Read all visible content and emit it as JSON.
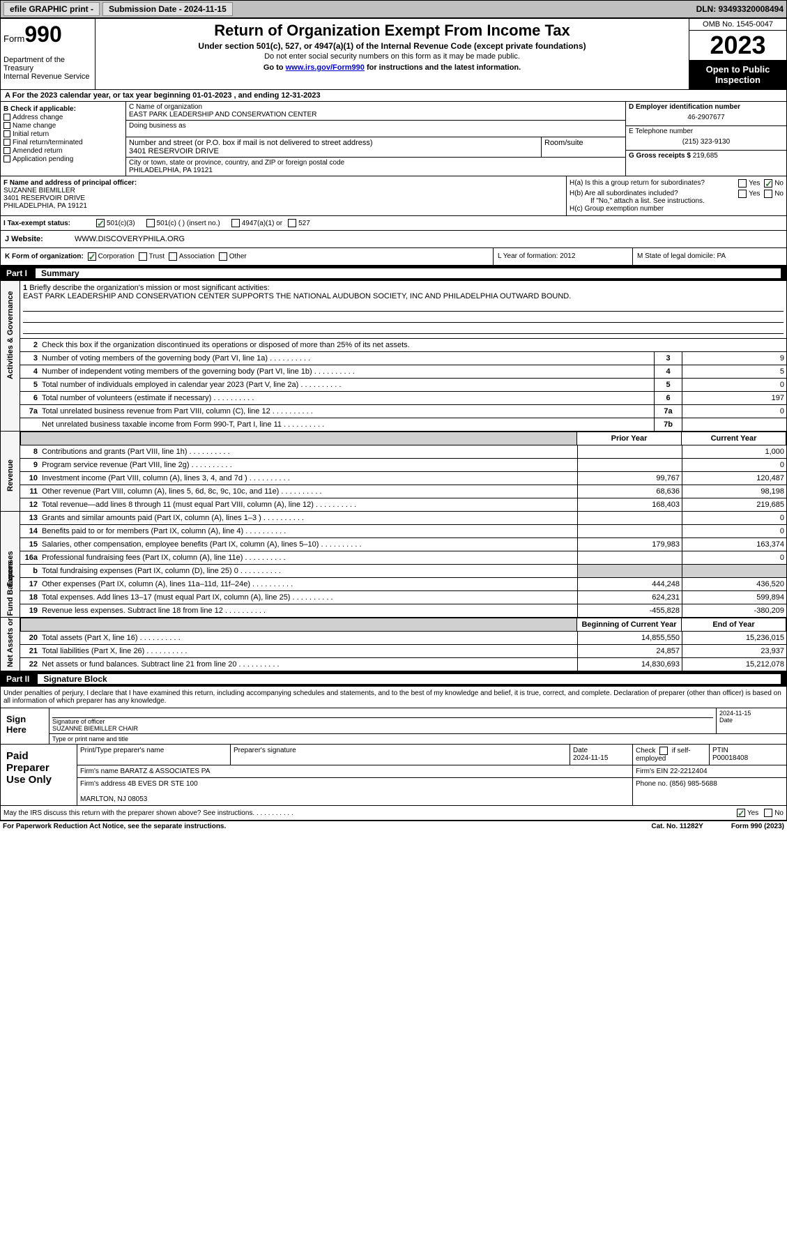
{
  "topbar": {
    "efile": "efile GRAPHIC print - ",
    "submission": "Submission Date - 2024-11-15",
    "dln": "DLN: 93493320008494"
  },
  "header": {
    "form": "Form",
    "num": "990",
    "title": "Return of Organization Exempt From Income Tax",
    "sub1": "Under section 501(c), 527, or 4947(a)(1) of the Internal Revenue Code (except private foundations)",
    "sub2": "Do not enter social security numbers on this form as it may be made public.",
    "sub3_pre": "Go to ",
    "sub3_link": "www.irs.gov/Form990",
    "sub3_post": " for instructions and the latest information.",
    "dept": "Department of the Treasury\nInternal Revenue Service",
    "omb": "OMB No. 1545-0047",
    "year": "2023",
    "inspect": "Open to Public Inspection"
  },
  "rowA": "For the 2023 calendar year, or tax year beginning 01-01-2023    , and ending 12-31-2023",
  "colB": {
    "title": "B Check if applicable:",
    "opts": [
      "Address change",
      "Name change",
      "Initial return",
      "Final return/terminated",
      "Amended return",
      "Application pending"
    ]
  },
  "colC": {
    "name_lbl": "C Name of organization",
    "name": "EAST PARK LEADERSHIP AND CONSERVATION CENTER",
    "dba_lbl": "Doing business as",
    "addr_lbl": "Number and street (or P.O. box if mail is not delivered to street address)",
    "addr": "3401 RESERVOIR DRIVE",
    "room_lbl": "Room/suite",
    "city_lbl": "City or town, state or province, country, and ZIP or foreign postal code",
    "city": "PHILADELPHIA, PA  19121"
  },
  "colD": {
    "ein_lbl": "D Employer identification number",
    "ein": "46-2907677",
    "phone_lbl": "E Telephone number",
    "phone": "(215) 323-9130",
    "gross_lbl": "G Gross receipts $",
    "gross": "219,685"
  },
  "sectF": {
    "lbl": "F Name and address of principal officer:",
    "name": "SUZANNE BIEMILLER",
    "addr": "3401 RESERVOIR DRIVE",
    "city": "PHILADELPHIA, PA  19121"
  },
  "sectH": {
    "ha": "H(a)  Is this a group return for subordinates?",
    "hb": "H(b)  Are all subordinates included?",
    "hb_note": "If \"No,\" attach a list. See instructions.",
    "hc": "H(c)  Group exemption number",
    "yes": "Yes",
    "no": "No"
  },
  "taxrow": {
    "lbl": "Tax-exempt status:",
    "o1": "501(c)(3)",
    "o2": "501(c) (  ) (insert no.)",
    "o3": "4947(a)(1) or",
    "o4": "527"
  },
  "jweb": {
    "lbl": "J   Website:",
    "val": "WWW.DISCOVERYPHILA.ORG"
  },
  "kform": {
    "k": "K Form of organization:",
    "opts": [
      "Corporation",
      "Trust",
      "Association",
      "Other"
    ],
    "l": "L Year of formation: 2012",
    "m": "M State of legal domicile: PA"
  },
  "part1": {
    "num": "Part I",
    "title": "Summary"
  },
  "mission": {
    "q": "Briefly describe the organization's mission or most significant activities:",
    "a": "EAST PARK LEADERSHIP AND CONSERVATION CENTER SUPPORTS THE NATIONAL AUDUBON SOCIETY, INC AND PHILADELPHIA OUTWARD BOUND."
  },
  "gov": {
    "l2": "Check this box          if the organization discontinued its operations or disposed of more than 25% of its net assets.",
    "rows": [
      {
        "n": "3",
        "t": "Number of voting members of the governing body (Part VI, line 1a)",
        "b": "3",
        "v": "9"
      },
      {
        "n": "4",
        "t": "Number of independent voting members of the governing body (Part VI, line 1b)",
        "b": "4",
        "v": "5"
      },
      {
        "n": "5",
        "t": "Total number of individuals employed in calendar year 2023 (Part V, line 2a)",
        "b": "5",
        "v": "0"
      },
      {
        "n": "6",
        "t": "Total number of volunteers (estimate if necessary)",
        "b": "6",
        "v": "197"
      },
      {
        "n": "7a",
        "t": "Total unrelated business revenue from Part VIII, column (C), line 12",
        "b": "7a",
        "v": "0"
      },
      {
        "n": "",
        "t": "Net unrelated business taxable income from Form 990-T, Part I, line 11",
        "b": "7b",
        "v": ""
      }
    ]
  },
  "revHdr": {
    "py": "Prior Year",
    "cy": "Current Year"
  },
  "rev": [
    {
      "n": "8",
      "t": "Contributions and grants (Part VIII, line 1h)",
      "p": "",
      "c": "1,000"
    },
    {
      "n": "9",
      "t": "Program service revenue (Part VIII, line 2g)",
      "p": "",
      "c": "0"
    },
    {
      "n": "10",
      "t": "Investment income (Part VIII, column (A), lines 3, 4, and 7d )",
      "p": "99,767",
      "c": "120,487"
    },
    {
      "n": "11",
      "t": "Other revenue (Part VIII, column (A), lines 5, 6d, 8c, 9c, 10c, and 11e)",
      "p": "68,636",
      "c": "98,198"
    },
    {
      "n": "12",
      "t": "Total revenue—add lines 8 through 11 (must equal Part VIII, column (A), line 12)",
      "p": "168,403",
      "c": "219,685"
    }
  ],
  "exp": [
    {
      "n": "13",
      "t": "Grants and similar amounts paid (Part IX, column (A), lines 1–3 )",
      "p": "",
      "c": "0"
    },
    {
      "n": "14",
      "t": "Benefits paid to or for members (Part IX, column (A), line 4)",
      "p": "",
      "c": "0"
    },
    {
      "n": "15",
      "t": "Salaries, other compensation, employee benefits (Part IX, column (A), lines 5–10)",
      "p": "179,983",
      "c": "163,374"
    },
    {
      "n": "16a",
      "t": "Professional fundraising fees (Part IX, column (A), line 11e)",
      "p": "",
      "c": "0"
    },
    {
      "n": "b",
      "t": "Total fundraising expenses (Part IX, column (D), line 25) 0",
      "p": "grey",
      "c": "grey"
    },
    {
      "n": "17",
      "t": "Other expenses (Part IX, column (A), lines 11a–11d, 11f–24e)",
      "p": "444,248",
      "c": "436,520"
    },
    {
      "n": "18",
      "t": "Total expenses. Add lines 13–17 (must equal Part IX, column (A), line 25)",
      "p": "624,231",
      "c": "599,894"
    },
    {
      "n": "19",
      "t": "Revenue less expenses. Subtract line 18 from line 12",
      "p": "-455,828",
      "c": "-380,209"
    }
  ],
  "netHdr": {
    "b": "Beginning of Current Year",
    "e": "End of Year"
  },
  "net": [
    {
      "n": "20",
      "t": "Total assets (Part X, line 16)",
      "p": "14,855,550",
      "c": "15,236,015"
    },
    {
      "n": "21",
      "t": "Total liabilities (Part X, line 26)",
      "p": "24,857",
      "c": "23,937"
    },
    {
      "n": "22",
      "t": "Net assets or fund balances. Subtract line 21 from line 20",
      "p": "14,830,693",
      "c": "15,212,078"
    }
  ],
  "part2": {
    "num": "Part II",
    "title": "Signature Block"
  },
  "sigtext": "Under penalties of perjury, I declare that I have examined this return, including accompanying schedules and statements, and to the best of my knowledge and belief, it is true, correct, and complete. Declaration of preparer (other than officer) is based on all information of which preparer has any knowledge.",
  "sign": {
    "here": "Sign Here",
    "sig_lbl": "Signature of officer",
    "name": "SUZANNE BIEMILLER  CHAIR",
    "name_lbl": "Type or print name and title",
    "date": "2024-11-15",
    "date_lbl": "Date"
  },
  "paid": {
    "title": "Paid Preparer Use Only",
    "r1": {
      "c1": "Print/Type preparer's name",
      "c2": "Preparer's signature",
      "c3": "Date\n2024-11-15",
      "c4": "Check        if self-employed",
      "c5": "PTIN\nP00018408"
    },
    "r2": {
      "c1": "Firm's name      BARATZ & ASSOCIATES PA",
      "c2": "Firm's EIN  22-2212404"
    },
    "r3": {
      "c1": "Firm's address 4B EVES DR STE 100\n\nMARLTON, NJ  08053",
      "c2": "Phone no. (856) 985-5688"
    }
  },
  "discuss": {
    "t": "May the IRS discuss this return with the preparer shown above? See instructions.",
    "yes": "Yes",
    "no": "No"
  },
  "footer": {
    "l": "For Paperwork Reduction Act Notice, see the separate instructions.",
    "m": "Cat. No. 11282Y",
    "r": "Form 990 (2023)"
  },
  "vlabels": {
    "gov": "Activities & Governance",
    "rev": "Revenue",
    "exp": "Expenses",
    "net": "Net Assets or Fund Balances"
  }
}
